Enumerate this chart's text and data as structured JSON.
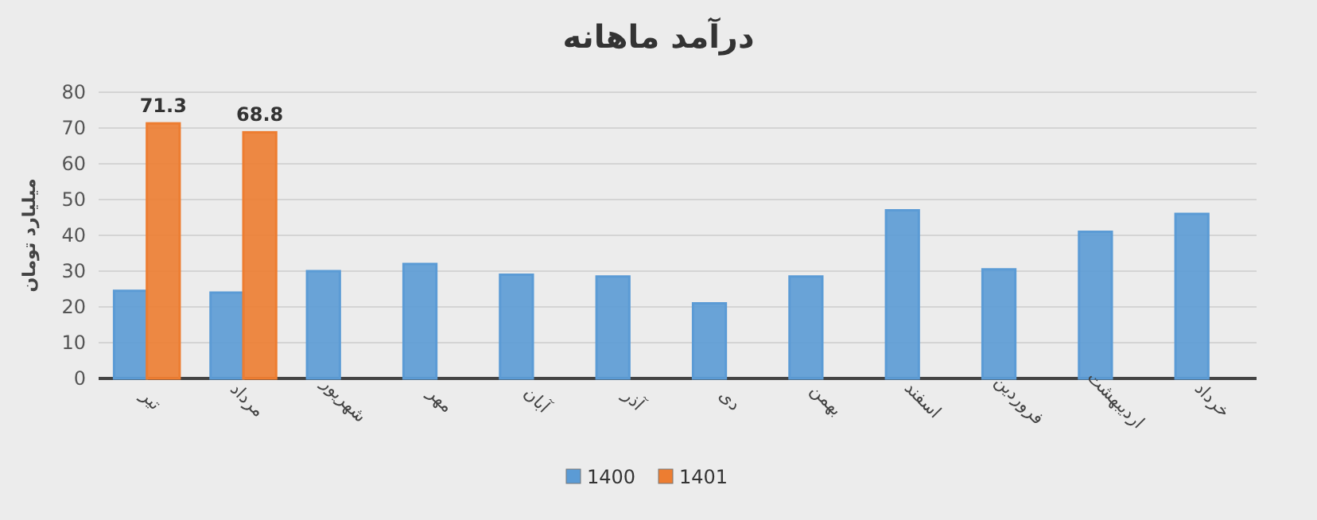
{
  "chart_data": {
    "type": "bar",
    "title": "درآمد ماهانه",
    "ylabel": "میلیارد تومان",
    "categories": [
      "تیر",
      "مرداد",
      "شهریور",
      "مهر",
      "آبان",
      "آذر",
      "دی",
      "بهمن",
      "اسفند",
      "فروردین",
      "اردیبهشت",
      "خرداد"
    ],
    "series": [
      {
        "name": "1400",
        "color": "#5b9bd5",
        "values": [
          24.5,
          24,
          30,
          32,
          29,
          28.5,
          21,
          28.5,
          47,
          30.5,
          41,
          46
        ]
      },
      {
        "name": "1401",
        "color": "#ed7d31",
        "values": [
          71.3,
          68.8,
          null,
          null,
          null,
          null,
          null,
          null,
          null,
          null,
          null,
          null
        ],
        "value_labels": [
          "71.3",
          "68.8",
          null,
          null,
          null,
          null,
          null,
          null,
          null,
          null,
          null,
          null
        ]
      }
    ],
    "ylim": [
      0,
      80
    ],
    "yticks": [
      0,
      10,
      20,
      30,
      40,
      50,
      60,
      70,
      80
    ],
    "grid": "y",
    "legend": "bottom"
  }
}
